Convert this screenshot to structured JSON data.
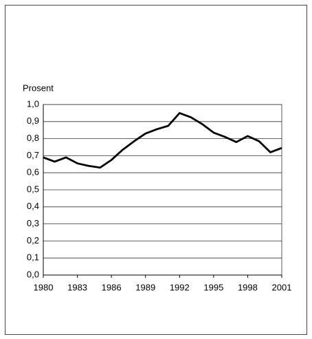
{
  "chart_data": {
    "type": "line",
    "y_label": "Prosent",
    "x": [
      1980,
      1981,
      1982,
      1983,
      1984,
      1985,
      1986,
      1987,
      1988,
      1989,
      1990,
      1991,
      1992,
      1993,
      1994,
      1995,
      1996,
      1997,
      1998,
      1999,
      2000,
      2001
    ],
    "series": [
      {
        "color": "#000000",
        "values": [
          0.69,
          0.665,
          0.69,
          0.655,
          0.64,
          0.63,
          0.675,
          0.735,
          0.785,
          0.83,
          0.855,
          0.875,
          0.95,
          0.925,
          0.885,
          0.835,
          0.81,
          0.78,
          0.815,
          0.785,
          0.72,
          0.745
        ]
      }
    ],
    "xlim": [
      1980,
      2001
    ],
    "xticks": [
      1980,
      1983,
      1986,
      1989,
      1992,
      1995,
      1998,
      2001
    ],
    "ylim": [
      0,
      1.0
    ],
    "yticks": [
      {
        "value": 0,
        "label": "0,0"
      },
      {
        "value": 0.1,
        "label": "0,1"
      },
      {
        "value": 0.2,
        "label": "0,2"
      },
      {
        "value": 0.3,
        "label": "0,3"
      },
      {
        "value": 0.4,
        "label": "0,4"
      },
      {
        "value": 0.5,
        "label": "0,5"
      },
      {
        "value": 0.6,
        "label": "0,6"
      },
      {
        "value": 0.7,
        "label": "0,7"
      },
      {
        "value": 0.8,
        "label": "0,8"
      },
      {
        "value": 0.9,
        "label": "0,9"
      },
      {
        "value": 1.0,
        "label": "1,0"
      }
    ],
    "grid": true
  }
}
